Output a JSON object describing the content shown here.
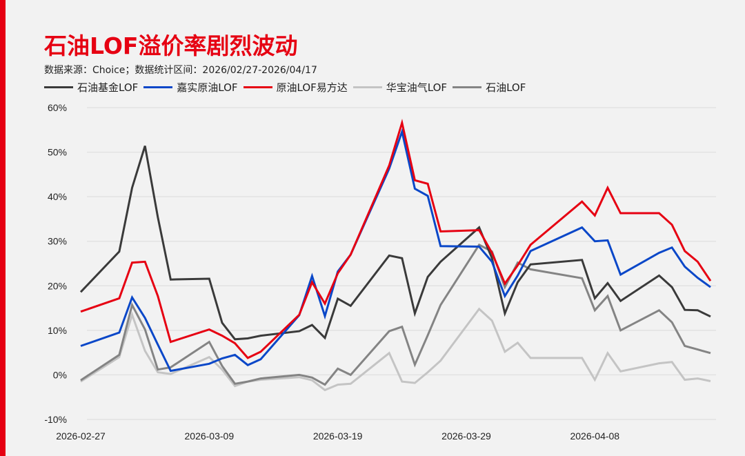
{
  "header": {
    "title": "石油LOF溢价率剧烈波动",
    "subtitle": "数据来源：Choice；数据统计区间：2026/02/27-2026/04/17"
  },
  "chart_data": {
    "type": "line",
    "title": "石油LOF溢价率剧烈波动",
    "subtitle": "数据来源：Choice；数据统计区间：2026/02/27-2026/04/17",
    "xlabel": "",
    "ylabel": "",
    "ylim": [
      -10,
      60
    ],
    "yticks": [
      -10,
      0,
      10,
      20,
      30,
      40,
      50,
      60
    ],
    "ytick_labels": [
      "-10%",
      "0%",
      "10%",
      "20%",
      "30%",
      "40%",
      "50%",
      "60%"
    ],
    "xtick_labels": [
      "2026-02-27",
      "2026-03-09",
      "2026-03-19",
      "2026-03-29",
      "2026-04-08"
    ],
    "xlim": [
      "2026-02-27",
      "2026-04-17"
    ],
    "grid": true,
    "legend_position": "top-left",
    "x": [
      "2026-02-27",
      "2026-03-02",
      "2026-03-03",
      "2026-03-04",
      "2026-03-05",
      "2026-03-06",
      "2026-03-09",
      "2026-03-10",
      "2026-03-11",
      "2026-03-12",
      "2026-03-13",
      "2026-03-16",
      "2026-03-17",
      "2026-03-18",
      "2026-03-19",
      "2026-03-20",
      "2026-03-23",
      "2026-03-24",
      "2026-03-25",
      "2026-03-26",
      "2026-03-27",
      "2026-03-30",
      "2026-03-31",
      "2026-04-01",
      "2026-04-02",
      "2026-04-03",
      "2026-04-07",
      "2026-04-08",
      "2026-04-09",
      "2026-04-10",
      "2026-04-13",
      "2026-04-14",
      "2026-04-15",
      "2026-04-16",
      "2026-04-17"
    ],
    "series": [
      {
        "name": "石油基金LOF",
        "color": "#3a3a3a",
        "values": [
          18.6,
          27.7,
          42.0,
          51.4,
          35.4,
          21.4,
          21.6,
          11.7,
          8.0,
          8.2,
          8.8,
          9.8,
          11.2,
          8.3,
          17.1,
          15.5,
          26.8,
          26.2,
          13.8,
          22.0,
          25.4,
          33.1,
          26.2,
          13.8,
          20.8,
          24.8,
          25.8,
          17.2,
          20.6,
          16.6,
          22.3,
          19.7,
          14.6,
          14.5,
          13.1
        ]
      },
      {
        "name": "嘉实原油LOF",
        "color": "#0a47c8",
        "values": [
          6.5,
          9.5,
          17.4,
          12.8,
          6.8,
          0.9,
          2.5,
          3.7,
          4.5,
          2.2,
          3.5,
          13.4,
          22.2,
          13.2,
          23.2,
          27.0,
          46.3,
          54.6,
          41.8,
          40.2,
          28.9,
          28.8,
          25.4,
          17.7,
          22.3,
          27.8,
          33.1,
          30.0,
          30.2,
          22.5,
          27.4,
          28.6,
          24.3,
          21.8,
          19.7
        ]
      },
      {
        "name": "原油LOF易方达",
        "color": "#e60012",
        "values": [
          14.2,
          17.2,
          25.2,
          25.4,
          17.7,
          7.4,
          10.2,
          8.8,
          7.1,
          3.8,
          5.2,
          13.5,
          20.8,
          16.0,
          22.8,
          27.0,
          47.0,
          56.6,
          43.7,
          42.9,
          32.2,
          32.5,
          27.4,
          20.5,
          24.6,
          29.2,
          38.9,
          35.8,
          42.0,
          36.3,
          36.3,
          33.7,
          27.8,
          25.4,
          21.1
        ]
      },
      {
        "name": "华宝油气LOF",
        "color": "#c4c4c4",
        "values": [
          -1.5,
          4.0,
          13.5,
          5.4,
          0.6,
          0.2,
          4.0,
          1.2,
          -2.5,
          -1.5,
          -1.1,
          -0.5,
          -1.2,
          -3.4,
          -2.2,
          -2.0,
          4.9,
          -1.5,
          -1.8,
          0.6,
          3.2,
          14.8,
          12.2,
          5.2,
          7.2,
          3.8,
          3.8,
          -1.1,
          4.9,
          0.8,
          2.6,
          2.9,
          -1.1,
          -0.8,
          -1.4
        ]
      },
      {
        "name": "石油LOF",
        "color": "#848484",
        "values": [
          -1.2,
          4.5,
          15.7,
          10.2,
          1.2,
          1.7,
          7.4,
          2.0,
          -2.0,
          -1.5,
          -0.8,
          0.0,
          -0.6,
          -2.2,
          1.4,
          0.0,
          9.8,
          10.8,
          2.3,
          8.9,
          15.7,
          29.2,
          27.7,
          19.7,
          25.2,
          23.7,
          21.7,
          14.5,
          17.7,
          10.0,
          14.5,
          11.8,
          6.5,
          5.7,
          4.9
        ]
      }
    ]
  }
}
